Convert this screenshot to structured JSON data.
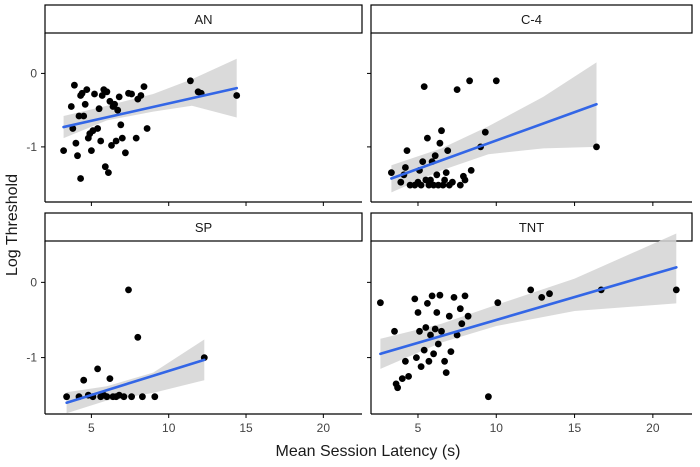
{
  "chart_data": {
    "type": "scatter",
    "title": "",
    "xlabel": "Mean Session Latency (s)",
    "ylabel": "Log Threshold",
    "colors": {
      "point": "#000000",
      "fit_line": "#3366E6",
      "ribbon": "#D3D3D3",
      "strip_fill": "#FFFFFF",
      "axis": "#000000"
    },
    "facets": [
      {
        "label": "AN",
        "xlim": [
          2,
          22.5
        ],
        "xticks": [
          5,
          10,
          15,
          20
        ],
        "xticklabels": [
          "5",
          "10",
          "15",
          "20"
        ],
        "ylim": [
          -1.75,
          0.55
        ],
        "yticks": [
          0,
          -1
        ],
        "yticklabels": [
          "0",
          "-1"
        ],
        "points": [
          [
            3.2,
            -1.05
          ],
          [
            3.7,
            -0.45
          ],
          [
            3.8,
            -0.75
          ],
          [
            3.9,
            -0.16
          ],
          [
            4.0,
            -0.95
          ],
          [
            4.1,
            -1.12
          ],
          [
            4.2,
            -0.58
          ],
          [
            4.3,
            -0.3
          ],
          [
            4.3,
            -1.43
          ],
          [
            4.4,
            -0.27
          ],
          [
            4.5,
            -0.58
          ],
          [
            4.6,
            -0.42
          ],
          [
            4.7,
            -0.22
          ],
          [
            4.8,
            -0.88
          ],
          [
            4.9,
            -0.82
          ],
          [
            5.0,
            -1.05
          ],
          [
            5.1,
            -0.78
          ],
          [
            5.2,
            -0.28
          ],
          [
            5.4,
            -0.75
          ],
          [
            5.5,
            -0.48
          ],
          [
            5.6,
            -0.92
          ],
          [
            5.7,
            -0.3
          ],
          [
            5.8,
            -0.22
          ],
          [
            5.9,
            -1.27
          ],
          [
            6.0,
            -0.25
          ],
          [
            6.1,
            -1.35
          ],
          [
            6.2,
            -0.38
          ],
          [
            6.3,
            -0.98
          ],
          [
            6.4,
            -0.45
          ],
          [
            6.5,
            -0.42
          ],
          [
            6.6,
            -0.92
          ],
          [
            6.7,
            -0.5
          ],
          [
            6.8,
            -0.32
          ],
          [
            6.9,
            -0.7
          ],
          [
            7.0,
            -0.88
          ],
          [
            7.2,
            -1.08
          ],
          [
            7.4,
            -0.27
          ],
          [
            7.6,
            -0.28
          ],
          [
            7.9,
            -0.88
          ],
          [
            8.0,
            -0.35
          ],
          [
            8.2,
            -0.3
          ],
          [
            8.4,
            -0.18
          ],
          [
            8.6,
            -0.75
          ],
          [
            11.4,
            -0.1
          ],
          [
            11.9,
            -0.25
          ],
          [
            12.1,
            -0.27
          ],
          [
            14.4,
            -0.3
          ]
        ],
        "fit": {
          "x": [
            3.2,
            14.4
          ],
          "y": [
            -0.73,
            -0.2
          ]
        },
        "ribbon": {
          "x": [
            3.2,
            6.0,
            9.0,
            11.5,
            14.4
          ],
          "upper": [
            -0.58,
            -0.44,
            -0.28,
            -0.08,
            0.2
          ],
          "lower": [
            -0.88,
            -0.64,
            -0.52,
            -0.44,
            -0.6
          ]
        }
      },
      {
        "label": "C-4",
        "xlim": [
          2,
          22.5
        ],
        "xticks": [
          5,
          10,
          15,
          20
        ],
        "xticklabels": [
          "5",
          "10",
          "15",
          "20"
        ],
        "ylim": [
          -1.75,
          0.55
        ],
        "yticks": [
          0,
          -1
        ],
        "yticklabels": [
          "0",
          "-1"
        ],
        "points": [
          [
            3.3,
            -1.35
          ],
          [
            3.9,
            -1.48
          ],
          [
            4.1,
            -1.38
          ],
          [
            4.2,
            -1.28
          ],
          [
            4.3,
            -1.05
          ],
          [
            4.5,
            -1.52
          ],
          [
            4.8,
            -1.52
          ],
          [
            5.0,
            -1.48
          ],
          [
            5.1,
            -1.32
          ],
          [
            5.2,
            -1.52
          ],
          [
            5.3,
            -1.2
          ],
          [
            5.4,
            -0.18
          ],
          [
            5.5,
            -1.45
          ],
          [
            5.6,
            -0.88
          ],
          [
            5.7,
            -1.52
          ],
          [
            5.8,
            -1.45
          ],
          [
            5.9,
            -1.2
          ],
          [
            6.0,
            -1.52
          ],
          [
            6.1,
            -1.12
          ],
          [
            6.2,
            -1.38
          ],
          [
            6.3,
            -1.52
          ],
          [
            6.4,
            -0.95
          ],
          [
            6.5,
            -0.78
          ],
          [
            6.6,
            -1.52
          ],
          [
            6.7,
            -1.45
          ],
          [
            6.8,
            -1.35
          ],
          [
            6.9,
            -1.05
          ],
          [
            7.0,
            -1.52
          ],
          [
            7.2,
            -1.48
          ],
          [
            7.5,
            -0.22
          ],
          [
            7.7,
            -1.52
          ],
          [
            7.9,
            -1.4
          ],
          [
            8.0,
            -1.45
          ],
          [
            8.3,
            -0.1
          ],
          [
            8.4,
            -1.32
          ],
          [
            9.0,
            -1.0
          ],
          [
            9.3,
            -0.8
          ],
          [
            10.0,
            -0.1
          ],
          [
            16.4,
            -1.0
          ]
        ],
        "fit": {
          "x": [
            3.3,
            16.4
          ],
          "y": [
            -1.43,
            -0.42
          ]
        },
        "ribbon": {
          "x": [
            3.3,
            6.5,
            9.5,
            13.0,
            16.4
          ],
          "upper": [
            -1.25,
            -1.02,
            -0.72,
            -0.32,
            0.15
          ],
          "lower": [
            -1.62,
            -1.32,
            -1.1,
            -1.02,
            -1.0
          ]
        }
      },
      {
        "label": "SP",
        "xlim": [
          2,
          22.5
        ],
        "xticks": [
          5,
          10,
          15,
          20
        ],
        "xticklabels": [
          "5",
          "10",
          "15",
          "20"
        ],
        "ylim": [
          -1.75,
          0.55
        ],
        "yticks": [
          0,
          -1
        ],
        "yticklabels": [
          "0",
          "-1"
        ],
        "points": [
          [
            3.4,
            -1.52
          ],
          [
            4.2,
            -1.52
          ],
          [
            4.5,
            -1.3
          ],
          [
            4.8,
            -1.5
          ],
          [
            5.1,
            -1.52
          ],
          [
            5.4,
            -1.15
          ],
          [
            5.6,
            -1.52
          ],
          [
            5.8,
            -1.5
          ],
          [
            6.0,
            -1.52
          ],
          [
            6.2,
            -1.28
          ],
          [
            6.4,
            -1.52
          ],
          [
            6.6,
            -1.52
          ],
          [
            6.8,
            -1.5
          ],
          [
            7.1,
            -1.52
          ],
          [
            7.4,
            -0.1
          ],
          [
            7.6,
            -1.52
          ],
          [
            8.0,
            -0.73
          ],
          [
            8.3,
            -1.52
          ],
          [
            9.1,
            -1.52
          ],
          [
            12.3,
            -1.0
          ]
        ],
        "fit": {
          "x": [
            3.4,
            12.3
          ],
          "y": [
            -1.6,
            -1.03
          ]
        },
        "ribbon": {
          "x": [
            3.4,
            6.0,
            9.0,
            12.3
          ],
          "upper": [
            -1.46,
            -1.38,
            -1.2,
            -0.76
          ],
          "lower": [
            -1.74,
            -1.57,
            -1.47,
            -1.3
          ]
        }
      },
      {
        "label": "TNT",
        "xlim": [
          2,
          22.5
        ],
        "xticks": [
          5,
          10,
          15,
          20
        ],
        "xticklabels": [
          "5",
          "10",
          "15",
          "20"
        ],
        "ylim": [
          -1.75,
          0.55
        ],
        "yticks": [
          0,
          -1
        ],
        "yticklabels": [
          "0",
          "-1"
        ],
        "points": [
          [
            2.6,
            -0.27
          ],
          [
            3.5,
            -0.65
          ],
          [
            3.6,
            -1.35
          ],
          [
            3.7,
            -1.4
          ],
          [
            4.0,
            -1.28
          ],
          [
            4.2,
            -1.05
          ],
          [
            4.4,
            -1.25
          ],
          [
            4.8,
            -0.22
          ],
          [
            4.9,
            -1.0
          ],
          [
            5.0,
            -0.4
          ],
          [
            5.1,
            -0.65
          ],
          [
            5.2,
            -1.12
          ],
          [
            5.4,
            -0.9
          ],
          [
            5.5,
            -0.6
          ],
          [
            5.6,
            -0.28
          ],
          [
            5.7,
            -1.05
          ],
          [
            5.8,
            -0.7
          ],
          [
            5.9,
            -0.18
          ],
          [
            6.0,
            -0.95
          ],
          [
            6.1,
            -0.62
          ],
          [
            6.2,
            -0.4
          ],
          [
            6.3,
            -0.82
          ],
          [
            6.4,
            -0.17
          ],
          [
            6.5,
            -0.65
          ],
          [
            6.7,
            -1.05
          ],
          [
            6.8,
            -1.2
          ],
          [
            7.0,
            -0.45
          ],
          [
            7.1,
            -0.92
          ],
          [
            7.3,
            -0.2
          ],
          [
            7.5,
            -0.7
          ],
          [
            7.7,
            -0.35
          ],
          [
            7.8,
            -0.55
          ],
          [
            8.0,
            -0.18
          ],
          [
            8.2,
            -0.45
          ],
          [
            9.5,
            -1.52
          ],
          [
            10.1,
            -0.27
          ],
          [
            12.2,
            -0.1
          ],
          [
            12.9,
            -0.2
          ],
          [
            13.4,
            -0.15
          ],
          [
            16.7,
            -0.1
          ],
          [
            21.5,
            -0.1
          ]
        ],
        "fit": {
          "x": [
            2.6,
            21.5
          ],
          "y": [
            -0.95,
            0.2
          ]
        },
        "ribbon": {
          "x": [
            2.6,
            6.5,
            10.0,
            15.0,
            21.5
          ],
          "upper": [
            -0.75,
            -0.55,
            -0.3,
            0.05,
            0.65
          ],
          "lower": [
            -1.15,
            -0.8,
            -0.58,
            -0.38,
            -0.28
          ]
        }
      }
    ]
  }
}
